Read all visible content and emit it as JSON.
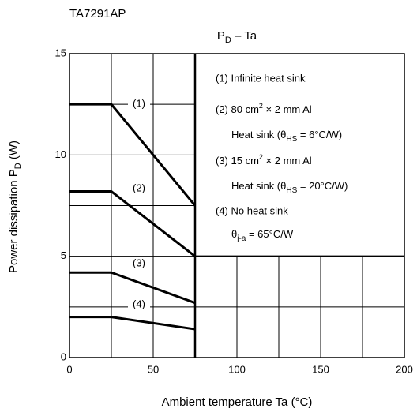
{
  "header": "TA7291AP",
  "chart_data": {
    "type": "line",
    "title": [
      "P",
      "D",
      " – Ta"
    ],
    "x_label": "Ambient temperature   Ta   (°C)",
    "y_label": [
      "Power dissipation   P",
      "D",
      "   (W)"
    ],
    "xlim": [
      0,
      200
    ],
    "xticks": [
      0,
      50,
      100,
      150,
      200
    ],
    "minor_xticks": [
      25,
      75,
      125,
      175
    ],
    "ylim": [
      0,
      15
    ],
    "yticks": [
      0,
      5,
      10,
      15
    ],
    "minor_yticks": [
      2.5,
      7.5,
      12.5
    ],
    "grid": true,
    "series": [
      {
        "name": "(1)",
        "color": "#000000",
        "x": [
          0,
          25,
          75
        ],
        "values": [
          12.5,
          12.5,
          7.5
        ]
      },
      {
        "name": "(2)",
        "color": "#000000",
        "x": [
          0,
          25,
          75
        ],
        "values": [
          8.2,
          8.2,
          5.0
        ]
      },
      {
        "name": "(3)",
        "color": "#000000",
        "x": [
          0,
          25,
          75
        ],
        "values": [
          4.2,
          4.2,
          2.7
        ]
      },
      {
        "name": "(4)",
        "color": "#000000",
        "x": [
          0,
          25,
          75
        ],
        "values": [
          2.0,
          2.0,
          1.4
        ]
      }
    ],
    "legend": [
      [
        "(1) Infinite heat sink"
      ],
      [
        "(2) 80 cm",
        "2",
        " × 2 mm Al"
      ],
      [
        "Heat sink (θ",
        "HS",
        " = 6°C/W)"
      ],
      [
        "(3) 15 cm",
        "2",
        " × 2 mm Al"
      ],
      [
        "Heat sink (θ",
        "HS",
        " = 20°C/W)"
      ],
      [
        "(4) No heat sink"
      ],
      [
        "θ",
        "j-a",
        " = 65°C/W"
      ]
    ]
  }
}
